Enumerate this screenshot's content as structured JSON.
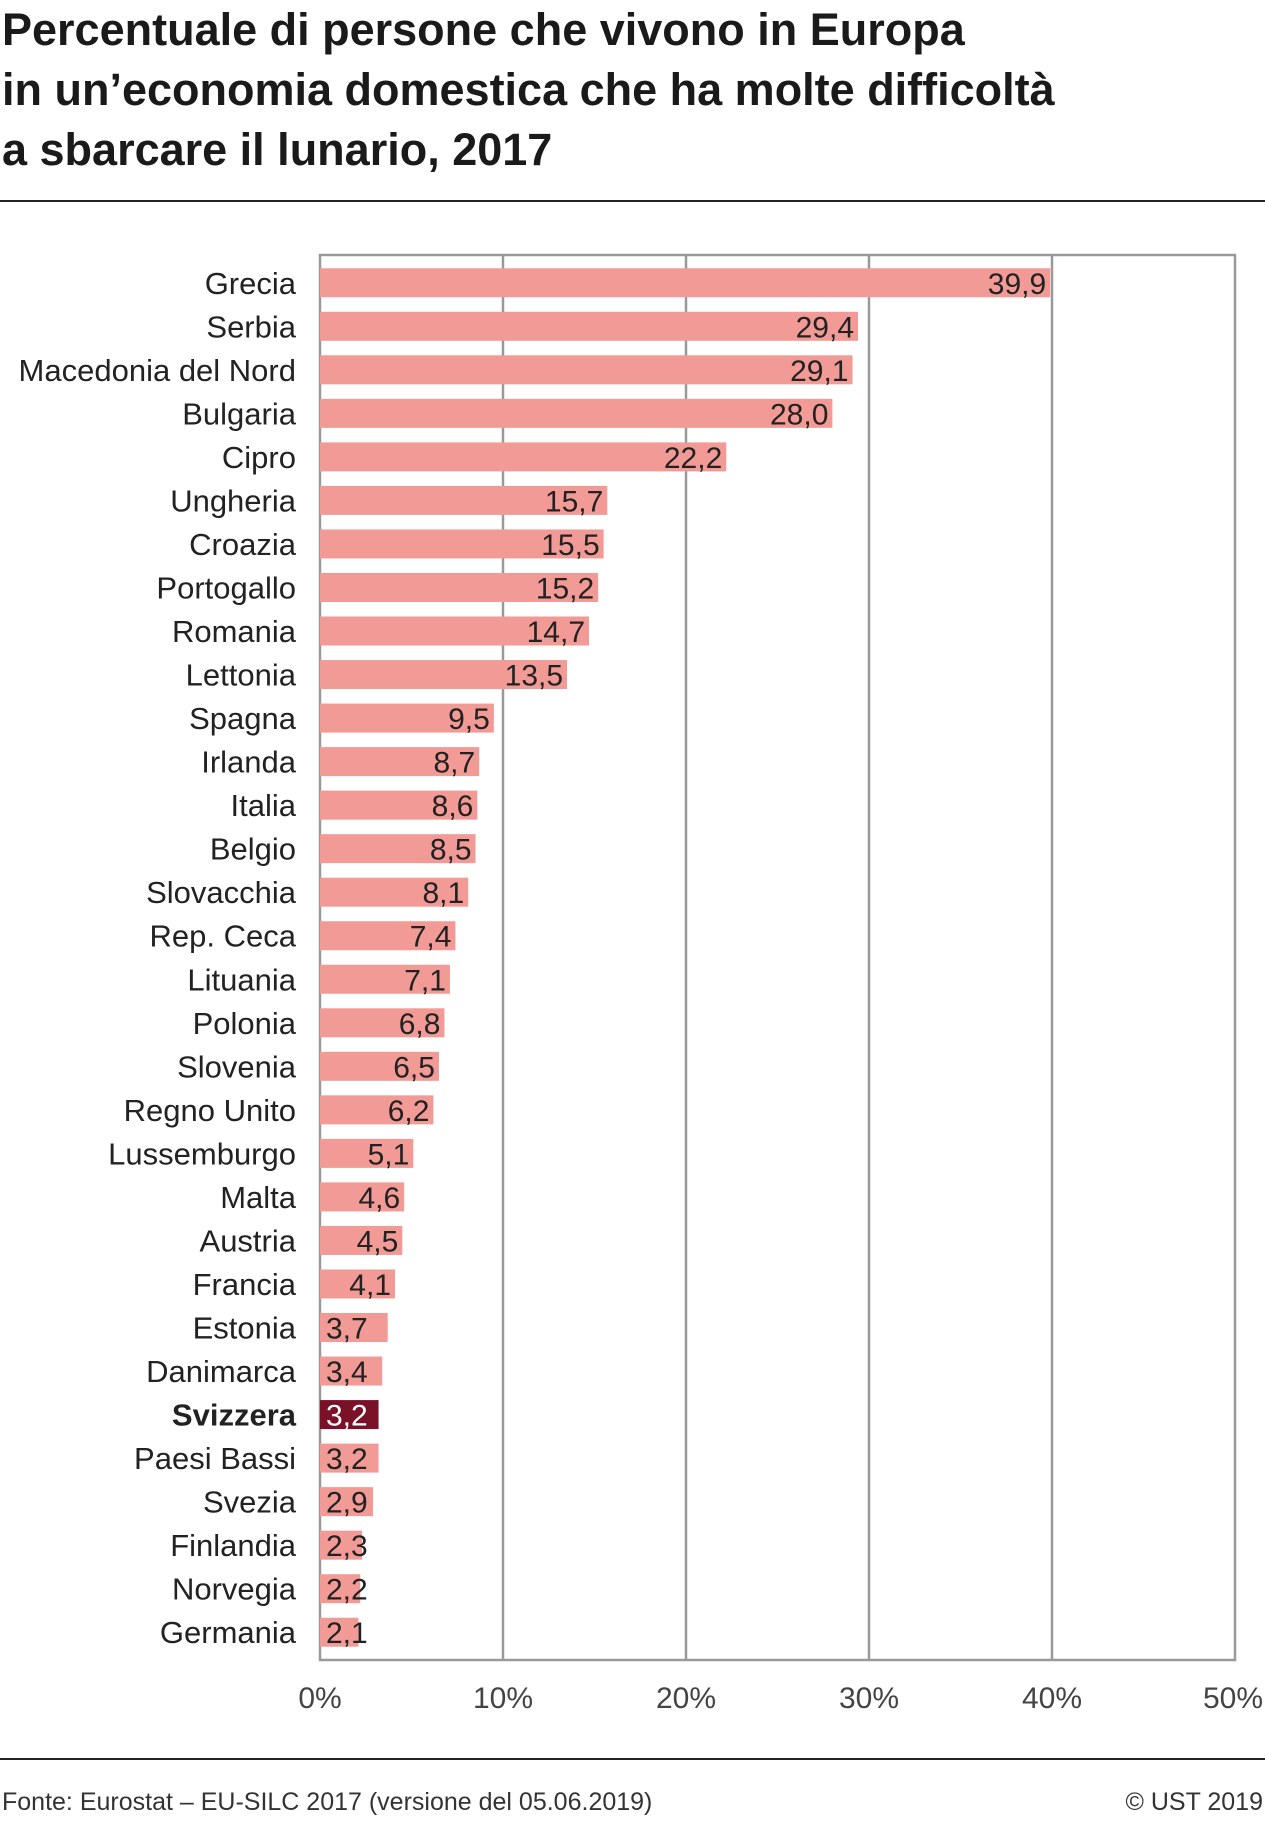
{
  "title_lines": [
    "Percentuale di persone che vivono in Europa",
    "in un’economia domestica che ha molte difficoltà",
    "a sbarcare il lunario, 2017"
  ],
  "footer": {
    "source": "Fonte: Eurostat – EU-SILC 2017 (versione del 05.06.2019)",
    "copyright": "© UST 2019"
  },
  "colors": {
    "bar": "#f29a96",
    "highlight_bar": "#7a1128",
    "grid": "#999999",
    "text": "#222222"
  },
  "chart_data": {
    "type": "bar",
    "orientation": "horizontal",
    "categories": [
      "Grecia",
      "Serbia",
      "Macedonia del Nord",
      "Bulgaria",
      "Cipro",
      "Ungheria",
      "Croazia",
      "Portogallo",
      "Romania",
      "Lettonia",
      "Spagna",
      "Irlanda",
      "Italia",
      "Belgio",
      "Slovacchia",
      "Rep. Ceca",
      "Lituania",
      "Polonia",
      "Slovenia",
      "Regno Unito",
      "Lussemburgo",
      "Malta",
      "Austria",
      "Francia",
      "Estonia",
      "Danimarca",
      "Svizzera",
      "Paesi Bassi",
      "Svezia",
      "Finlandia",
      "Norvegia",
      "Germania"
    ],
    "values": [
      39.9,
      29.4,
      29.1,
      28.0,
      22.2,
      15.7,
      15.5,
      15.2,
      14.7,
      13.5,
      9.5,
      8.7,
      8.6,
      8.5,
      8.1,
      7.4,
      7.1,
      6.8,
      6.5,
      6.2,
      5.1,
      4.6,
      4.5,
      4.1,
      3.7,
      3.4,
      3.2,
      3.2,
      2.9,
      2.3,
      2.2,
      2.1
    ],
    "value_labels": [
      "39,9",
      "29,4",
      "29,1",
      "28,0",
      "22,2",
      "15,7",
      "15,5",
      "15,2",
      "14,7",
      "13,5",
      "9,5",
      "8,7",
      "8,6",
      "8,5",
      "8,1",
      "7,4",
      "7,1",
      "6,8",
      "6,5",
      "6,2",
      "5,1",
      "4,6",
      "4,5",
      "4,1",
      "3,7",
      "3,4",
      "3,2",
      "3,2",
      "2,9",
      "2,3",
      "2,2",
      "2,1"
    ],
    "highlight": "Svizzera",
    "xlim": [
      0,
      50
    ],
    "xticks": [
      0,
      10,
      20,
      30,
      40,
      50
    ],
    "xtick_labels": [
      "0%",
      "10%",
      "20%",
      "30%",
      "40%",
      "50%"
    ],
    "grid": true
  }
}
